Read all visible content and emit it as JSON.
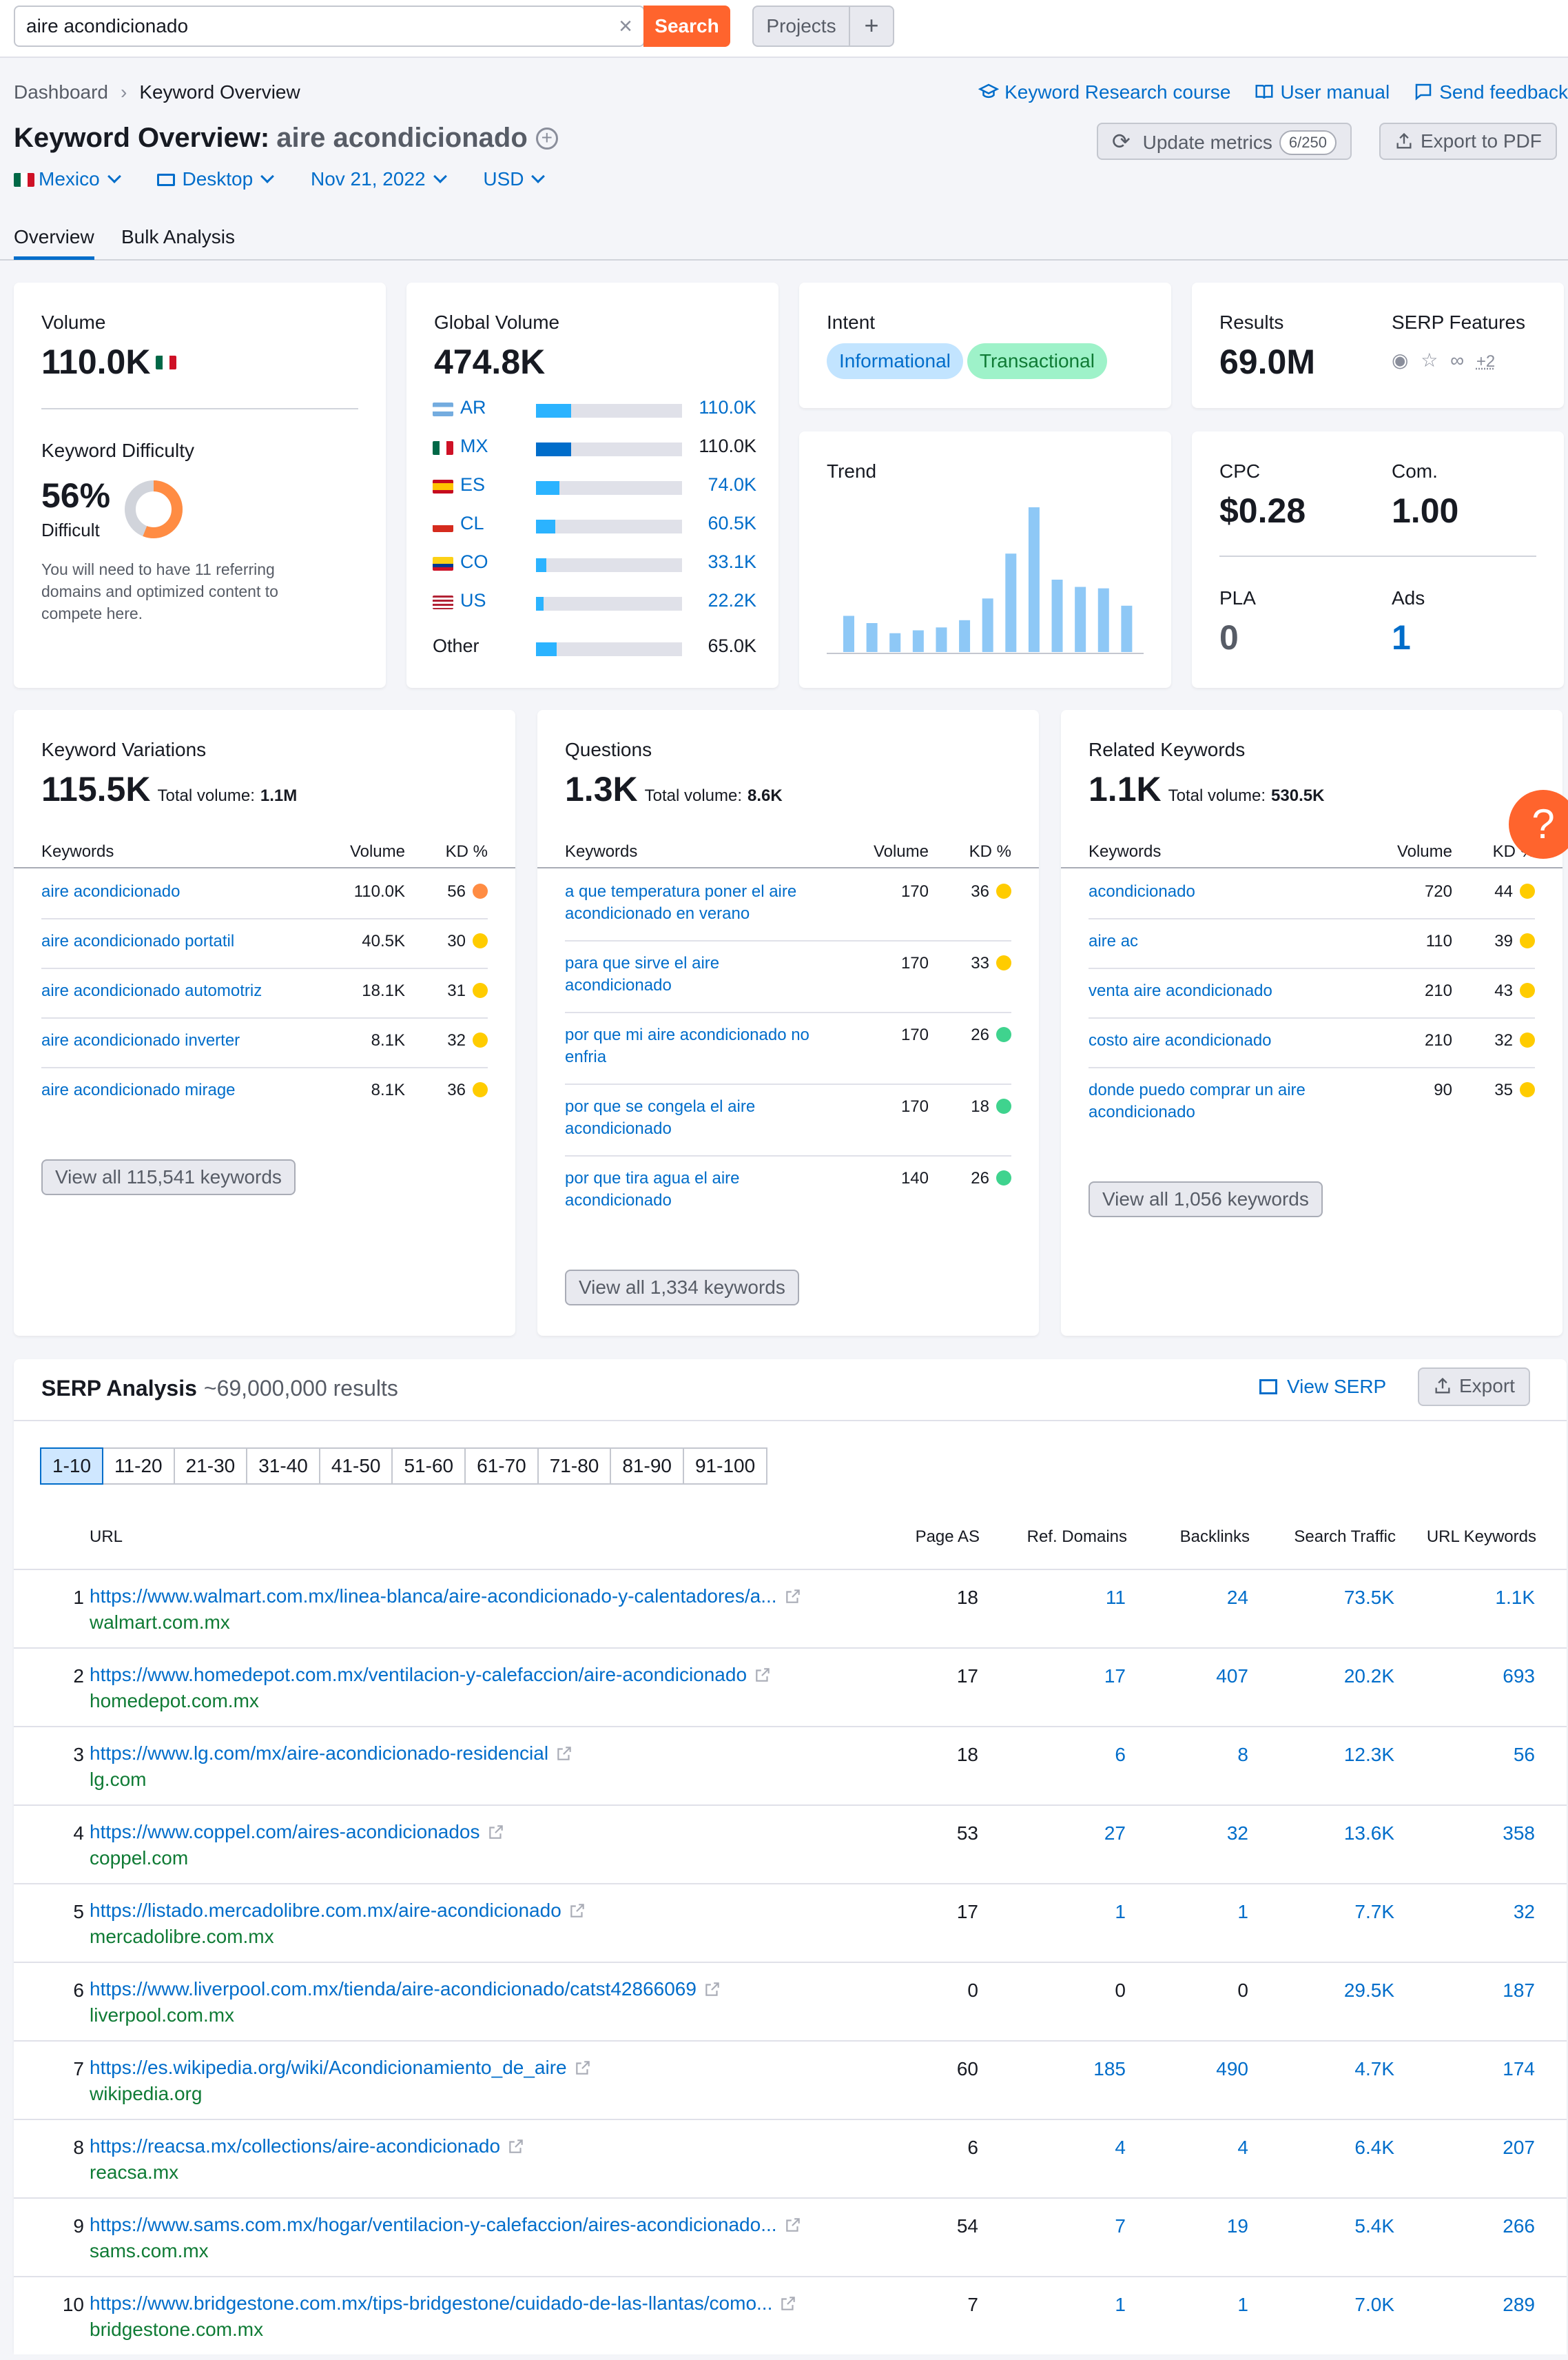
{
  "search": {
    "value": "aire acondicionado",
    "button": "Search",
    "projects": "Projects",
    "plus": "+"
  },
  "breadcrumb": {
    "home": "Dashboard",
    "current": "Keyword Overview"
  },
  "toplinks": {
    "course": "Keyword Research course",
    "manual": "User manual",
    "feedback": "Send feedback"
  },
  "header": {
    "title": "Keyword Overview:",
    "keyword": "aire acondicionado",
    "update": "Update metrics",
    "update_badge": "6/250",
    "export_pdf": "Export to PDF"
  },
  "filters": {
    "country": "Mexico",
    "device": "Desktop",
    "date": "Nov 21, 2022",
    "currency": "USD"
  },
  "tabs": [
    "Overview",
    "Bulk Analysis"
  ],
  "volume": {
    "label": "Volume",
    "value": "110.0K"
  },
  "kd": {
    "label": "Keyword Difficulty",
    "value": "56%",
    "level": "Difficult",
    "percent": 56,
    "note": "You will need to have 11 referring domains and optimized content to compete here.",
    "color": "#ff8c43"
  },
  "global": {
    "label": "Global Volume",
    "value": "474.8K",
    "rows": [
      {
        "code": "AR",
        "value": "110.0K",
        "fill": 0.24
      },
      {
        "code": "MX",
        "value": "110.0K",
        "fill": 0.24
      },
      {
        "code": "ES",
        "value": "74.0K",
        "fill": 0.16
      },
      {
        "code": "CL",
        "value": "60.5K",
        "fill": 0.13
      },
      {
        "code": "CO",
        "value": "33.1K",
        "fill": 0.07
      },
      {
        "code": "US",
        "value": "22.2K",
        "fill": 0.05
      }
    ],
    "other": {
      "label": "Other",
      "value": "65.0K",
      "fill": 0.14
    }
  },
  "intent": {
    "label": "Intent",
    "tags": [
      "Informational",
      "Transactional"
    ]
  },
  "trend": {
    "label": "Trend",
    "values": [
      0.25,
      0.2,
      0.13,
      0.15,
      0.17,
      0.22,
      0.37,
      0.68,
      1.0,
      0.5,
      0.45,
      0.44,
      0.32
    ]
  },
  "results": {
    "label": "Results",
    "value": "69.0M",
    "serp_label": "SERP Features",
    "serp_more": "+2"
  },
  "cpc": {
    "cpc_label": "CPC",
    "cpc": "$0.28",
    "com_label": "Com.",
    "com": "1.00",
    "pla_label": "PLA",
    "pla": "0",
    "ads_label": "Ads",
    "ads": "1"
  },
  "variations": {
    "label": "Keyword Variations",
    "value": "115.5K",
    "total_label": "Total volume:",
    "total": "1.1M",
    "cols": [
      "Keywords",
      "Volume",
      "KD %"
    ],
    "rows": [
      {
        "k": "aire acondicionado",
        "v": "110.0K",
        "d": "56",
        "c": "#ff8c43"
      },
      {
        "k": "aire acondicionado portatil",
        "v": "40.5K",
        "d": "30",
        "c": "#ffcc00"
      },
      {
        "k": "aire acondicionado automotriz",
        "v": "18.1K",
        "d": "31",
        "c": "#ffcc00"
      },
      {
        "k": "aire acondicionado inverter",
        "v": "8.1K",
        "d": "32",
        "c": "#ffcc00"
      },
      {
        "k": "aire acondicionado mirage",
        "v": "8.1K",
        "d": "36",
        "c": "#ffcc00"
      }
    ],
    "view_all": "View all 115,541 keywords"
  },
  "questions": {
    "label": "Questions",
    "value": "1.3K",
    "total_label": "Total volume:",
    "total": "8.6K",
    "cols": [
      "Keywords",
      "Volume",
      "KD %"
    ],
    "rows": [
      {
        "k1": "a que temperatura poner el aire",
        "k2": "acondicionado en verano",
        "v": "170",
        "d": "36",
        "c": "#ffcc00"
      },
      {
        "k1": "para que sirve el aire",
        "k2": "acondicionado",
        "v": "170",
        "d": "33",
        "c": "#ffcc00"
      },
      {
        "k1": "por que mi aire acondicionado no",
        "k2": "enfria",
        "v": "170",
        "d": "26",
        "c": "#3fd38e"
      },
      {
        "k1": "por que se congela el aire",
        "k2": "acondicionado",
        "v": "170",
        "d": "18",
        "c": "#3fd38e"
      },
      {
        "k1": "por que tira agua el aire",
        "k2": "acondicionado",
        "v": "140",
        "d": "26",
        "c": "#3fd38e"
      }
    ],
    "view_all": "View all 1,334 keywords"
  },
  "related": {
    "label": "Related Keywords",
    "value": "1.1K",
    "total_label": "Total volume:",
    "total": "530.5K",
    "cols": [
      "Keywords",
      "Volume",
      "KD %"
    ],
    "rows": [
      {
        "k1": "acondicionado",
        "k2": "",
        "v": "720",
        "d": "44",
        "c": "#ffcc00"
      },
      {
        "k1": "aire ac",
        "k2": "",
        "v": "110",
        "d": "39",
        "c": "#ffcc00"
      },
      {
        "k1": "venta aire acondicionado",
        "k2": "",
        "v": "210",
        "d": "43",
        "c": "#ffcc00"
      },
      {
        "k1": "costo aire acondicionado",
        "k2": "",
        "v": "210",
        "d": "32",
        "c": "#ffcc00"
      },
      {
        "k1": "donde puedo comprar un aire",
        "k2": "acondicionado",
        "v": "90",
        "d": "35",
        "c": "#ffcc00"
      }
    ],
    "view_all": "View all 1,056 keywords"
  },
  "serp": {
    "title": "SERP Analysis",
    "count": "~69,000,000 results",
    "view_serp": "View SERP",
    "export": "Export",
    "pages": [
      "1-10",
      "11-20",
      "21-30",
      "31-40",
      "41-50",
      "51-60",
      "61-70",
      "71-80",
      "81-90",
      "91-100"
    ],
    "cols": [
      "URL",
      "Page AS",
      "Ref. Domains",
      "Backlinks",
      "Search Traffic",
      "URL Keywords"
    ],
    "rows": [
      {
        "n": "1",
        "url": "https://www.walmart.com.mx/linea-blanca/aire-acondicionado-y-calentadores/a...",
        "domain": "walmart.com.mx",
        "as": "18",
        "ref": "11",
        "bl": "24",
        "st": "73.5K",
        "uk": "1.1K"
      },
      {
        "n": "2",
        "url": "https://www.homedepot.com.mx/ventilacion-y-calefaccion/aire-acondicionado",
        "domain": "homedepot.com.mx",
        "as": "17",
        "ref": "17",
        "bl": "407",
        "st": "20.2K",
        "uk": "693"
      },
      {
        "n": "3",
        "url": "https://www.lg.com/mx/aire-acondicionado-residencial",
        "domain": "lg.com",
        "as": "18",
        "ref": "6",
        "bl": "8",
        "st": "12.3K",
        "uk": "56"
      },
      {
        "n": "4",
        "url": "https://www.coppel.com/aires-acondicionados",
        "domain": "coppel.com",
        "as": "53",
        "ref": "27",
        "bl": "32",
        "st": "13.6K",
        "uk": "358"
      },
      {
        "n": "5",
        "url": "https://listado.mercadolibre.com.mx/aire-acondicionado",
        "domain": "mercadolibre.com.mx",
        "as": "17",
        "ref": "1",
        "bl": "1",
        "st": "7.7K",
        "uk": "32"
      },
      {
        "n": "6",
        "url": "https://www.liverpool.com.mx/tienda/aire-acondicionado/catst42866069",
        "domain": "liverpool.com.mx",
        "as": "0",
        "ref": "0",
        "bl": "0",
        "st": "29.5K",
        "uk": "187"
      },
      {
        "n": "7",
        "url": "https://es.wikipedia.org/wiki/Acondicionamiento_de_aire",
        "domain": "wikipedia.org",
        "as": "60",
        "ref": "185",
        "bl": "490",
        "st": "4.7K",
        "uk": "174"
      },
      {
        "n": "8",
        "url": "https://reacsa.mx/collections/aire-acondicionado",
        "domain": "reacsa.mx",
        "as": "6",
        "ref": "4",
        "bl": "4",
        "st": "6.4K",
        "uk": "207"
      },
      {
        "n": "9",
        "url": "https://www.sams.com.mx/hogar/ventilacion-y-calefaccion/aires-acondicionado...",
        "domain": "sams.com.mx",
        "as": "54",
        "ref": "7",
        "bl": "19",
        "st": "5.4K",
        "uk": "266"
      },
      {
        "n": "10",
        "url": "https://www.bridgestone.com.mx/tips-bridgestone/cuidado-de-las-llantas/como...",
        "domain": "bridgestone.com.mx",
        "as": "7",
        "ref": "1",
        "bl": "1",
        "st": "7.0K",
        "uk": "289"
      }
    ]
  },
  "help": "?"
}
